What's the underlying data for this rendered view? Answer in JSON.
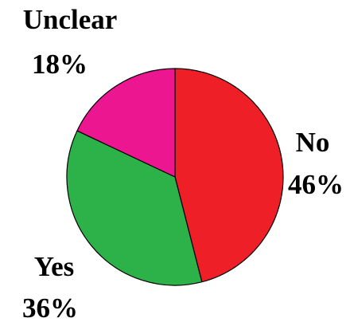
{
  "chart_data": {
    "type": "pie",
    "categories": [
      "No",
      "Yes",
      "Unclear"
    ],
    "values": [
      46,
      36,
      18
    ],
    "value_labels": [
      "46%",
      "36%",
      "18%"
    ],
    "colors": [
      "#EE1F26",
      "#2DB24A",
      "#EC1691"
    ],
    "start": "12 o'clock",
    "direction": "clockwise",
    "title": "",
    "legend": "none"
  }
}
